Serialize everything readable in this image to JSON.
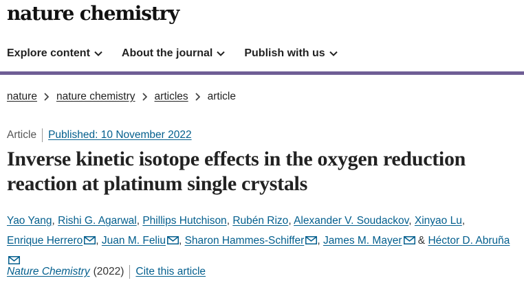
{
  "brand": {
    "name": "nature chemistry"
  },
  "nav": {
    "items": [
      {
        "label": "Explore content"
      },
      {
        "label": "About the journal"
      },
      {
        "label": "Publish with us"
      }
    ]
  },
  "breadcrumb": {
    "items": [
      "nature",
      "nature chemistry",
      "articles"
    ],
    "current": "article"
  },
  "article": {
    "type": "Article",
    "published": "Published: 10 November 2022",
    "title": "Inverse kinetic isotope effects in the oxygen reduction reaction at platinum single crystals",
    "authors": [
      {
        "name": "Yao Yang",
        "sep": ", "
      },
      {
        "name": "Rishi G. Agarwal",
        "sep": ", "
      },
      {
        "name": "Phillips Hutchison",
        "sep": ", "
      },
      {
        "name": "Rubén Rizo",
        "sep": ", "
      },
      {
        "name": "Alexander V. Soudackov",
        "sep": ", "
      },
      {
        "name": "Xinyao Lu",
        "sep": ", "
      },
      {
        "name": "Enrique Herrero",
        "sep": ", "
      },
      {
        "name": "Juan M. Feliu",
        "sep": ", "
      },
      {
        "name": "Sharon Hammes-Schiffer",
        "sep": ", "
      },
      {
        "name": "James M. Mayer",
        "sep": " & "
      },
      {
        "name": "Héctor D. Abruña",
        "sep": ""
      }
    ],
    "journal": "Nature Chemistry",
    "year": "(2022)",
    "cite": "Cite this article"
  },
  "colors": {
    "accent": "#6f5e95",
    "link": "#025e8d"
  },
  "icons": {
    "nav": "chevron-down-icon",
    "breadcrumb": "chevron-right-icon",
    "author": "mail-icon"
  }
}
